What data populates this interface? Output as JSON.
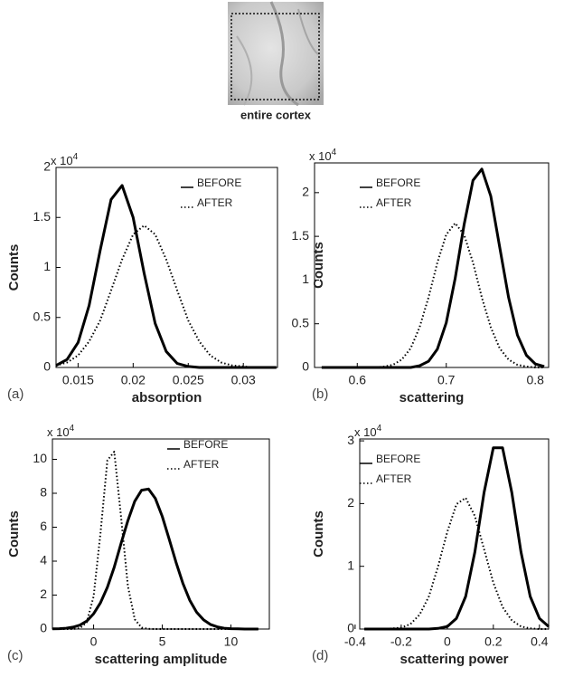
{
  "image_caption": "entire cortex",
  "chart_data": [
    {
      "type": "line",
      "panel_label": "(a)",
      "xlabel": "absorption",
      "ylabel": "Counts",
      "y_multiplier": {
        "text": "x 10",
        "exponent": "4"
      },
      "xlim": [
        0.013,
        0.0331
      ],
      "xticks": [
        0.015,
        0.02,
        0.025,
        0.03
      ],
      "ylim": [
        0,
        2
      ],
      "yticks": [
        0,
        0.5,
        1,
        1.5,
        2
      ],
      "x": [
        0.013,
        0.014,
        0.015,
        0.016,
        0.017,
        0.018,
        0.019,
        0.02,
        0.021,
        0.022,
        0.023,
        0.024,
        0.025,
        0.026,
        0.027,
        0.028,
        0.029,
        0.03,
        0.031,
        0.032,
        0.033
      ],
      "series": [
        {
          "name": "BEFORE",
          "color": "#000000",
          "line_style": "solid",
          "values": [
            0.02,
            0.08,
            0.25,
            0.62,
            1.17,
            1.68,
            1.82,
            1.5,
            0.94,
            0.44,
            0.16,
            0.04,
            0.01,
            0,
            0,
            0,
            0,
            0,
            0,
            0,
            0
          ]
        },
        {
          "name": "AFTER",
          "color": "#000000",
          "line_style": "dotted",
          "values": [
            0.02,
            0.05,
            0.12,
            0.26,
            0.47,
            0.77,
            1.08,
            1.33,
            1.42,
            1.33,
            1.08,
            0.77,
            0.47,
            0.26,
            0.12,
            0.05,
            0.02,
            0.01,
            0,
            0,
            0
          ]
        }
      ]
    },
    {
      "type": "line",
      "panel_label": "(b)",
      "xlabel": "scattering",
      "ylabel": "Counts",
      "y_multiplier": {
        "text": "x 10",
        "exponent": "4"
      },
      "xlim": [
        0.552,
        0.815
      ],
      "xticks": [
        0.6,
        0.7,
        0.8
      ],
      "ylim": [
        0,
        2.34
      ],
      "yticks": [
        0,
        0.5,
        1,
        1.5,
        2
      ],
      "x": [
        0.56,
        0.57,
        0.58,
        0.59,
        0.6,
        0.61,
        0.62,
        0.63,
        0.64,
        0.65,
        0.66,
        0.67,
        0.68,
        0.69,
        0.7,
        0.71,
        0.72,
        0.73,
        0.74,
        0.75,
        0.76,
        0.77,
        0.78,
        0.79,
        0.8,
        0.81
      ],
      "series": [
        {
          "name": "BEFORE",
          "color": "#000000",
          "line_style": "solid",
          "values": [
            0,
            0,
            0,
            0,
            0,
            0,
            0,
            0,
            0,
            0,
            0,
            0.02,
            0.07,
            0.21,
            0.51,
            1.02,
            1.63,
            2.14,
            2.27,
            1.96,
            1.38,
            0.8,
            0.37,
            0.14,
            0.04,
            0.01
          ]
        },
        {
          "name": "AFTER",
          "color": "#000000",
          "line_style": "dotted",
          "values": [
            0,
            0,
            0,
            0,
            0,
            0,
            0,
            0.01,
            0.03,
            0.09,
            0.22,
            0.46,
            0.8,
            1.2,
            1.52,
            1.65,
            1.52,
            1.2,
            0.8,
            0.46,
            0.22,
            0.09,
            0.03,
            0.01,
            0,
            0
          ]
        }
      ]
    },
    {
      "type": "line",
      "panel_label": "(c)",
      "xlabel": "scattering amplitude",
      "ylabel": "Counts",
      "y_multiplier": {
        "text": "x 10",
        "exponent": "4"
      },
      "xlim": [
        -3,
        12.8
      ],
      "xticks": [
        0,
        5,
        10
      ],
      "ylim": [
        0,
        11.2
      ],
      "yticks": [
        0,
        2,
        4,
        6,
        8,
        10
      ],
      "x": [
        -3,
        -2.5,
        -2,
        -1.5,
        -1,
        -0.5,
        0,
        0.5,
        1,
        1.5,
        2,
        2.5,
        3,
        3.5,
        4,
        4.5,
        5,
        5.5,
        6,
        6.5,
        7,
        7.5,
        8,
        8.5,
        9,
        9.5,
        10,
        10.5,
        11,
        11.5,
        12
      ],
      "series": [
        {
          "name": "BEFORE",
          "color": "#000000",
          "line_style": "solid",
          "values": [
            0.01,
            0.02,
            0.05,
            0.11,
            0.23,
            0.47,
            0.9,
            1.55,
            2.46,
            3.65,
            5.04,
            6.39,
            7.53,
            8.18,
            8.25,
            7.69,
            6.64,
            5.31,
            3.94,
            2.7,
            1.7,
            0.99,
            0.55,
            0.27,
            0.13,
            0.05,
            0.02,
            0.01,
            0,
            0,
            0
          ]
        },
        {
          "name": "AFTER",
          "color": "#000000",
          "line_style": "dotted",
          "values": [
            0,
            0,
            0,
            0,
            0.05,
            0.4,
            1.93,
            5.67,
            9.94,
            10.45,
            6.62,
            2.53,
            0.57,
            0.08,
            0.01,
            0,
            0,
            0,
            0,
            0,
            0,
            0,
            0,
            0,
            0,
            0,
            0,
            0,
            0,
            0,
            0
          ]
        }
      ]
    },
    {
      "type": "line",
      "panel_label": "(d)",
      "xlabel": "scattering power",
      "ylabel": "Counts",
      "y_multiplier": {
        "text": "x 10",
        "exponent": "4"
      },
      "xlim": [
        -0.38,
        0.44
      ],
      "xticks": [
        -0.4,
        -0.2,
        0,
        0.2,
        0.4
      ],
      "ylim": [
        0,
        3.03
      ],
      "yticks": [
        0,
        1,
        2,
        3
      ],
      "x": [
        -0.36,
        -0.32,
        -0.28,
        -0.24,
        -0.2,
        -0.16,
        -0.12,
        -0.08,
        -0.04,
        0,
        0.04,
        0.08,
        0.12,
        0.16,
        0.2,
        0.24,
        0.28,
        0.32,
        0.36,
        0.4,
        0.44
      ],
      "series": [
        {
          "name": "BEFORE",
          "color": "#000000",
          "line_style": "solid",
          "values": [
            0,
            0,
            0,
            0,
            0,
            0,
            0,
            0,
            0.01,
            0.04,
            0.17,
            0.52,
            1.23,
            2.18,
            2.89,
            2.89,
            2.18,
            1.23,
            0.52,
            0.17,
            0.04
          ]
        },
        {
          "name": "AFTER",
          "color": "#000000",
          "line_style": "dotted",
          "values": [
            0,
            0,
            0,
            0.01,
            0.02,
            0.08,
            0.23,
            0.52,
            1.0,
            1.55,
            1.99,
            2.09,
            1.8,
            1.27,
            0.74,
            0.35,
            0.14,
            0.04,
            0.01,
            0,
            0
          ]
        }
      ]
    }
  ]
}
